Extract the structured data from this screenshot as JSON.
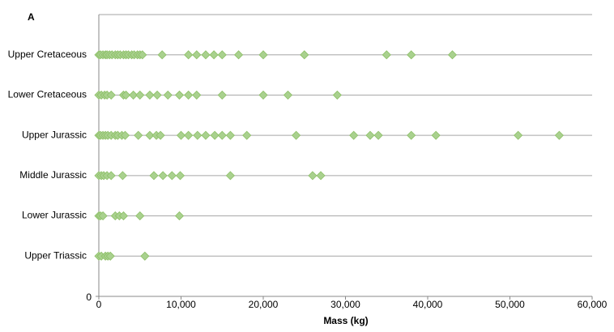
{
  "chart_data": {
    "type": "strip",
    "panel_label": "A",
    "x_label": "Mass (kg)",
    "categories": [
      "Upper Triassic",
      "Lower Jurassic",
      "Middle Jurassic",
      "Upper Jurassic",
      "Lower Cretaceous",
      "Upper Cretaceous"
    ],
    "x": [
      [
        0,
        300,
        800,
        1100,
        1400,
        5600
      ],
      [
        0,
        200,
        500,
        2000,
        2500,
        3000,
        5000,
        9800
      ],
      [
        0,
        300,
        600,
        1000,
        1500,
        2900,
        6700,
        7800,
        8900,
        9900,
        16000,
        26000,
        27000
      ],
      [
        0,
        200,
        500,
        800,
        1100,
        1500,
        2000,
        2300,
        2800,
        3200,
        4800,
        6200,
        7000,
        7500,
        10000,
        10900,
        12000,
        13000,
        14100,
        15000,
        16000,
        18000,
        24000,
        31000,
        33000,
        34000,
        38000,
        41000,
        51000,
        56000
      ],
      [
        0,
        300,
        700,
        1000,
        1500,
        3000,
        3300,
        4200,
        5000,
        6200,
        7100,
        8400,
        9800,
        10900,
        11900,
        15000,
        20000,
        23000,
        29000
      ],
      [
        0,
        200,
        500,
        800,
        1000,
        1300,
        1600,
        2000,
        2300,
        2600,
        3000,
        3300,
        3600,
        4000,
        4300,
        4700,
        5000,
        5300,
        7700,
        10900,
        11900,
        13000,
        14000,
        15000,
        17000,
        20000,
        25000,
        35000,
        38000,
        43000
      ]
    ],
    "color": "#a9d18e",
    "edge_color": "#8cbf66",
    "xlim": [
      0,
      60000
    ],
    "xticks": [
      0,
      {
        "value": 10000,
        "label": "10,000"
      },
      {
        "value": 20000,
        "label": "20,000"
      },
      {
        "value": 30000,
        "label": "30,000"
      },
      {
        "value": 40000,
        "label": "40,000"
      },
      {
        "value": 50000,
        "label": "50,000"
      },
      {
        "value": 60000,
        "label": "60,000"
      }
    ],
    "ylim": [
      0,
      7
    ],
    "yticks": [
      0
    ]
  }
}
